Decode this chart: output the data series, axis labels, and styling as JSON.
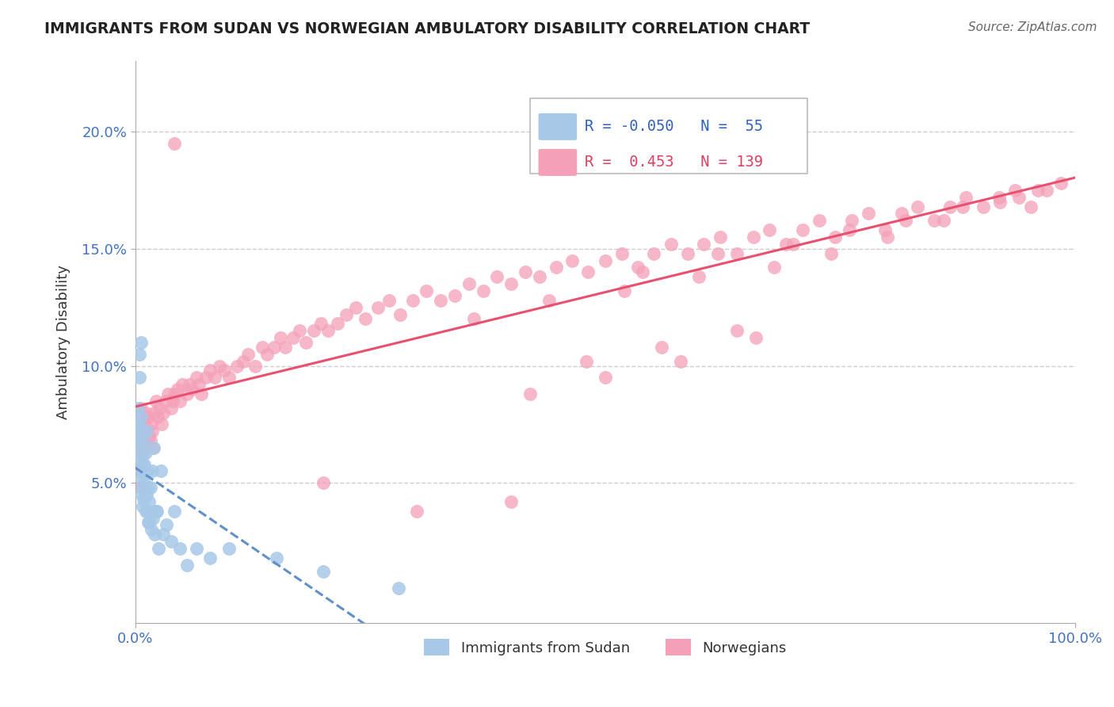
{
  "title": "IMMIGRANTS FROM SUDAN VS NORWEGIAN AMBULATORY DISABILITY CORRELATION CHART",
  "source": "Source: ZipAtlas.com",
  "ylabel": "Ambulatory Disability",
  "xlim": [
    0.0,
    1.0
  ],
  "ylim": [
    -0.01,
    0.23
  ],
  "ytick_positions": [
    0.05,
    0.1,
    0.15,
    0.2
  ],
  "ytick_labels": [
    "5.0%",
    "10.0%",
    "15.0%",
    "20.0%"
  ],
  "legend_r_blue": "-0.050",
  "legend_n_blue": "55",
  "legend_r_pink": "0.453",
  "legend_n_pink": "139",
  "blue_color": "#a8c8e8",
  "pink_color": "#f4a0b8",
  "blue_line_color": "#6090c8",
  "pink_line_color": "#e85070",
  "legend_blue_r_color": "#3060c0",
  "legend_pink_r_color": "#e04060",
  "title_color": "#222222",
  "source_color": "#666666",
  "grid_color": "#cccccc",
  "background_color": "#ffffff",
  "blue_scatter_x": [
    0.002,
    0.003,
    0.003,
    0.004,
    0.004,
    0.004,
    0.005,
    0.005,
    0.005,
    0.006,
    0.006,
    0.006,
    0.007,
    0.007,
    0.007,
    0.007,
    0.008,
    0.008,
    0.008,
    0.009,
    0.009,
    0.01,
    0.01,
    0.011,
    0.011,
    0.012,
    0.012,
    0.013,
    0.013,
    0.014,
    0.014,
    0.015,
    0.015,
    0.016,
    0.017,
    0.018,
    0.019,
    0.02,
    0.021,
    0.022,
    0.023,
    0.025,
    0.027,
    0.03,
    0.033,
    0.038,
    0.042,
    0.048,
    0.055,
    0.065,
    0.08,
    0.1,
    0.15,
    0.2,
    0.28
  ],
  "blue_scatter_y": [
    0.073,
    0.082,
    0.065,
    0.075,
    0.068,
    0.06,
    0.095,
    0.105,
    0.07,
    0.11,
    0.078,
    0.052,
    0.062,
    0.055,
    0.072,
    0.045,
    0.048,
    0.058,
    0.04,
    0.068,
    0.043,
    0.058,
    0.05,
    0.063,
    0.038,
    0.072,
    0.045,
    0.055,
    0.038,
    0.048,
    0.033,
    0.042,
    0.033,
    0.048,
    0.03,
    0.055,
    0.035,
    0.065,
    0.028,
    0.038,
    0.038,
    0.022,
    0.055,
    0.028,
    0.032,
    0.025,
    0.038,
    0.022,
    0.015,
    0.022,
    0.018,
    0.022,
    0.018,
    0.012,
    0.005
  ],
  "pink_scatter_x": [
    0.003,
    0.004,
    0.005,
    0.005,
    0.006,
    0.006,
    0.007,
    0.008,
    0.008,
    0.009,
    0.01,
    0.011,
    0.012,
    0.013,
    0.014,
    0.015,
    0.016,
    0.017,
    0.018,
    0.019,
    0.02,
    0.022,
    0.024,
    0.026,
    0.028,
    0.03,
    0.032,
    0.035,
    0.038,
    0.04,
    0.042,
    0.045,
    0.048,
    0.05,
    0.055,
    0.058,
    0.06,
    0.065,
    0.068,
    0.07,
    0.075,
    0.08,
    0.085,
    0.09,
    0.095,
    0.1,
    0.108,
    0.115,
    0.12,
    0.128,
    0.135,
    0.14,
    0.148,
    0.155,
    0.16,
    0.168,
    0.175,
    0.182,
    0.19,
    0.198,
    0.205,
    0.215,
    0.225,
    0.235,
    0.245,
    0.258,
    0.27,
    0.282,
    0.295,
    0.31,
    0.325,
    0.34,
    0.355,
    0.37,
    0.385,
    0.4,
    0.415,
    0.43,
    0.448,
    0.465,
    0.482,
    0.5,
    0.518,
    0.535,
    0.552,
    0.57,
    0.588,
    0.605,
    0.622,
    0.64,
    0.658,
    0.675,
    0.692,
    0.71,
    0.728,
    0.745,
    0.762,
    0.78,
    0.798,
    0.815,
    0.832,
    0.85,
    0.867,
    0.884,
    0.902,
    0.919,
    0.936,
    0.953,
    0.97,
    0.985,
    0.54,
    0.62,
    0.7,
    0.76,
    0.82,
    0.88,
    0.94,
    0.36,
    0.44,
    0.52,
    0.6,
    0.68,
    0.74,
    0.8,
    0.86,
    0.92,
    0.96,
    0.48,
    0.56,
    0.64,
    0.42,
    0.5,
    0.58,
    0.66,
    0.042,
    0.2,
    0.3,
    0.4
  ],
  "pink_scatter_y": [
    0.075,
    0.068,
    0.078,
    0.055,
    0.082,
    0.048,
    0.065,
    0.07,
    0.062,
    0.068,
    0.075,
    0.08,
    0.072,
    0.065,
    0.078,
    0.07,
    0.068,
    0.075,
    0.072,
    0.065,
    0.08,
    0.085,
    0.078,
    0.082,
    0.075,
    0.08,
    0.085,
    0.088,
    0.082,
    0.085,
    0.088,
    0.09,
    0.085,
    0.092,
    0.088,
    0.092,
    0.09,
    0.095,
    0.092,
    0.088,
    0.095,
    0.098,
    0.095,
    0.1,
    0.098,
    0.095,
    0.1,
    0.102,
    0.105,
    0.1,
    0.108,
    0.105,
    0.108,
    0.112,
    0.108,
    0.112,
    0.115,
    0.11,
    0.115,
    0.118,
    0.115,
    0.118,
    0.122,
    0.125,
    0.12,
    0.125,
    0.128,
    0.122,
    0.128,
    0.132,
    0.128,
    0.13,
    0.135,
    0.132,
    0.138,
    0.135,
    0.14,
    0.138,
    0.142,
    0.145,
    0.14,
    0.145,
    0.148,
    0.142,
    0.148,
    0.152,
    0.148,
    0.152,
    0.155,
    0.148,
    0.155,
    0.158,
    0.152,
    0.158,
    0.162,
    0.155,
    0.162,
    0.165,
    0.158,
    0.165,
    0.168,
    0.162,
    0.168,
    0.172,
    0.168,
    0.172,
    0.175,
    0.168,
    0.175,
    0.178,
    0.14,
    0.148,
    0.152,
    0.158,
    0.162,
    0.168,
    0.172,
    0.12,
    0.128,
    0.132,
    0.138,
    0.142,
    0.148,
    0.155,
    0.162,
    0.17,
    0.175,
    0.102,
    0.108,
    0.115,
    0.088,
    0.095,
    0.102,
    0.112,
    0.195,
    0.05,
    0.038,
    0.042
  ]
}
